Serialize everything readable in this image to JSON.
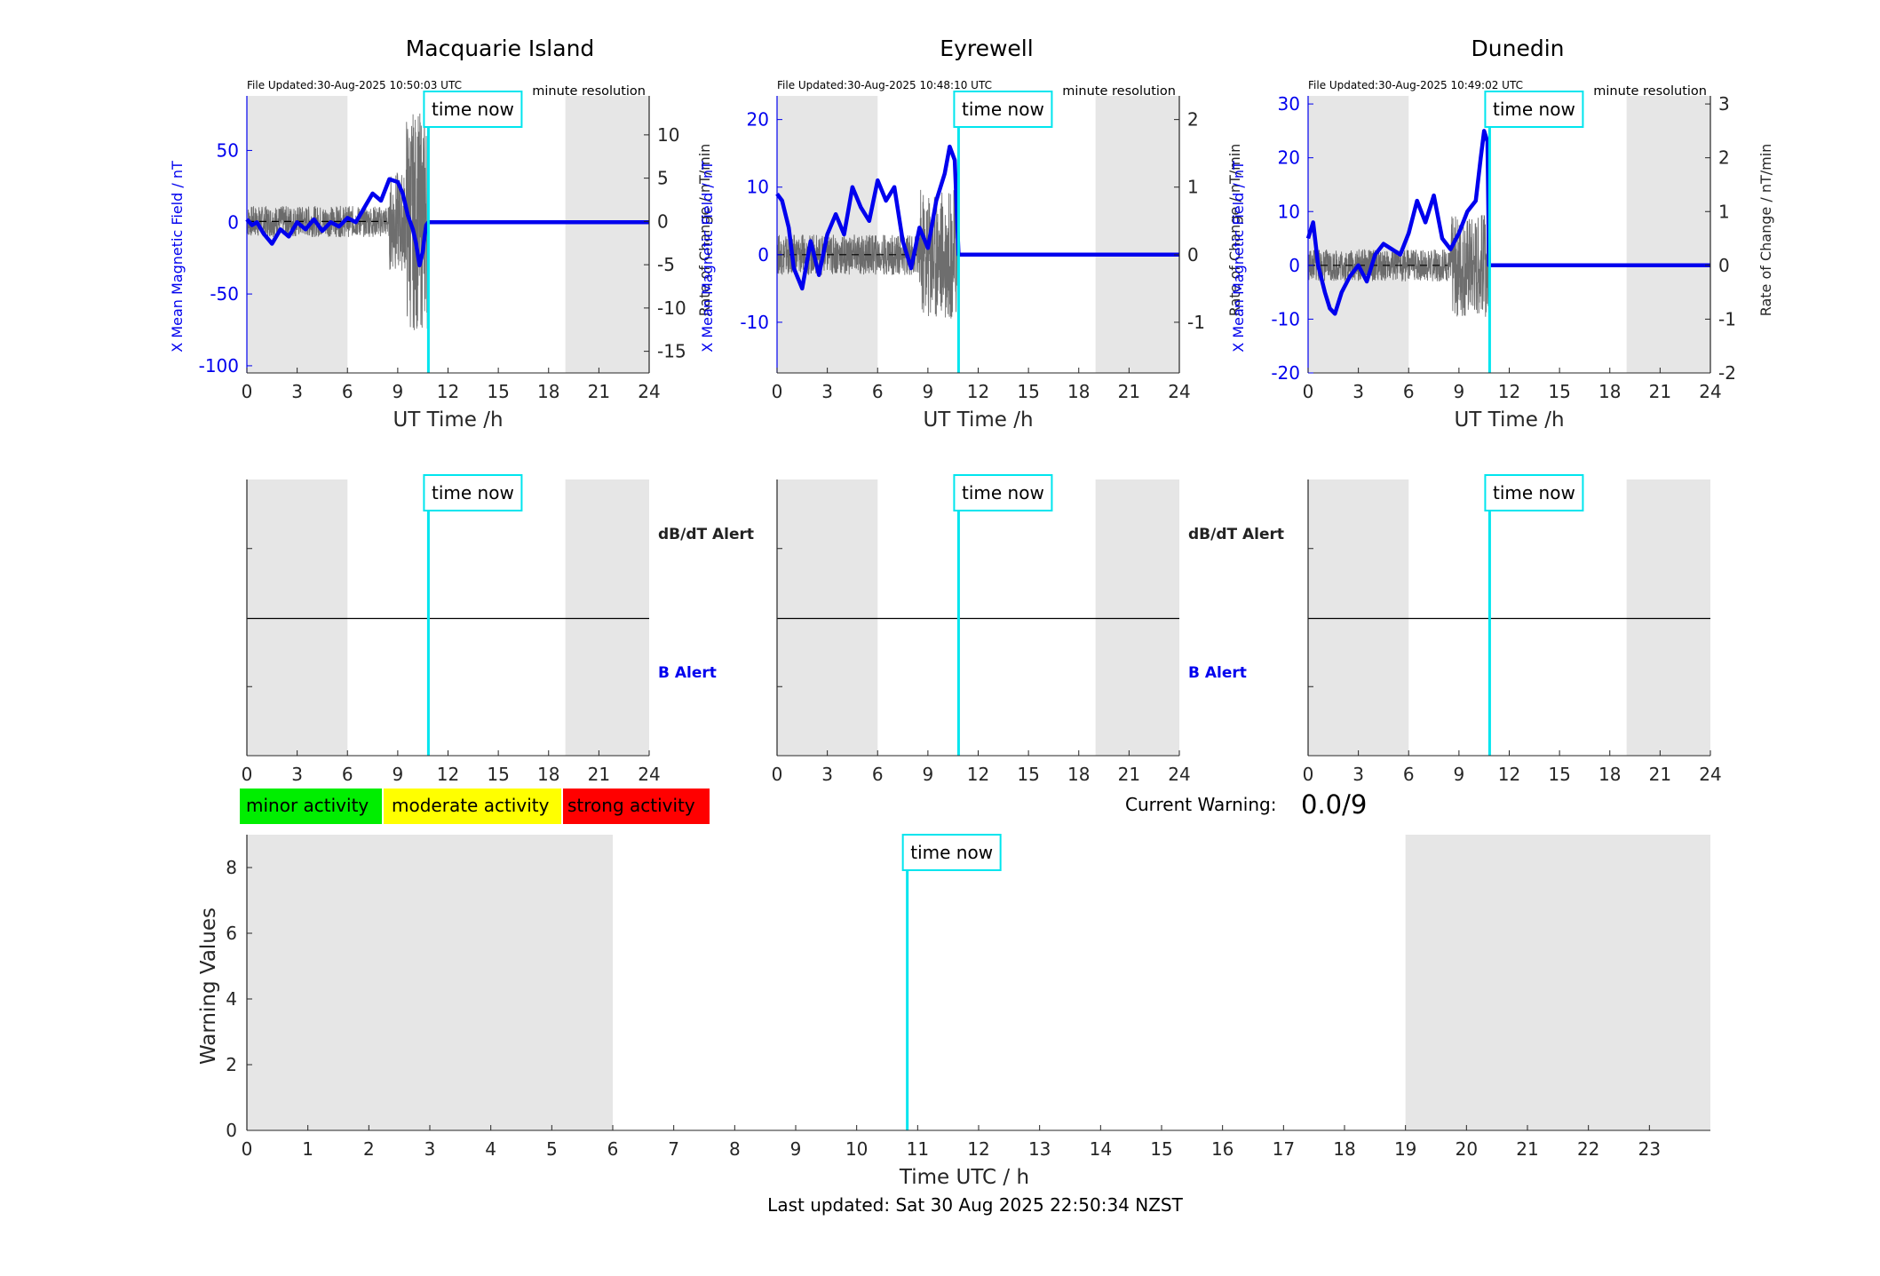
{
  "colors": {
    "field": "#0000ee",
    "rate": "#555555",
    "time_now": "#00e5ee",
    "shading": "#e6e6e6",
    "minor": "#00ee00",
    "moderate": "#ffff00",
    "strong": "#ff0000"
  },
  "time_now_label": "time now",
  "resolution_label": "minute resolution",
  "x_axis_label": "UT Time /h",
  "y_left_label": "X Mean Magnetic Field / nT",
  "y_right_label": "Rate of Change / nT/min",
  "dbdt_alert_label": "dB/dT Alert",
  "b_alert_label": "B Alert",
  "legend": {
    "minor": "minor activity",
    "moderate": "moderate activity",
    "strong": "strong activity"
  },
  "current_warning_label": "Current Warning:",
  "current_warning_value": "0.0/9",
  "last_updated": "Last updated: Sat 30 Aug 2025 22:50:34 NZST",
  "chart_data": [
    {
      "type": "line",
      "title": "Macquarie Island",
      "file_updated": "File Updated:30-Aug-2025 10:50:03 UTC",
      "xlabel": "UT Time /h",
      "ylabel": "X Mean Magnetic Field / nT",
      "y2label": "Rate of Change / nT/min",
      "xlim": [
        0,
        24
      ],
      "ylim": [
        -105,
        88
      ],
      "y2lim": [
        -17.5,
        14.5
      ],
      "xticks": [
        0,
        3,
        6,
        9,
        12,
        15,
        18,
        21,
        24
      ],
      "yticks": [
        -100,
        -50,
        0,
        50
      ],
      "y2ticks": [
        -15,
        -10,
        -5,
        0,
        5,
        10
      ],
      "time_now": 10.83,
      "night_shading": [
        [
          0,
          6
        ],
        [
          19,
          24
        ]
      ],
      "rate_noise_amplitude": 1.8,
      "series": [
        {
          "name": "X Mean Magnetic Field",
          "x": [
            0,
            0.3,
            0.6,
            1.0,
            1.5,
            2.0,
            2.5,
            3.0,
            3.5,
            4.0,
            4.5,
            5.0,
            5.5,
            6.0,
            6.5,
            7.0,
            7.5,
            8.0,
            8.5,
            9.0,
            9.3,
            9.6,
            9.9,
            10.1,
            10.3,
            10.5,
            10.6,
            10.7,
            10.83,
            24
          ],
          "values": [
            2,
            -2,
            0,
            -8,
            -15,
            -5,
            -10,
            0,
            -5,
            2,
            -6,
            0,
            -3,
            3,
            0,
            10,
            20,
            15,
            30,
            28,
            20,
            5,
            -5,
            -15,
            -30,
            -20,
            -10,
            -2,
            0,
            0
          ]
        }
      ]
    },
    {
      "type": "line",
      "title": "Eyrewell",
      "file_updated": "File Updated:30-Aug-2025 10:48:10 UTC",
      "xlabel": "UT Time /h",
      "ylabel": "X Mean Magnetic Field / nT",
      "y2label": "Rate of Change / nT/min",
      "xlim": [
        0,
        24
      ],
      "ylim": [
        -17.5,
        23.5
      ],
      "y2lim": [
        -1.75,
        2.35
      ],
      "xticks": [
        0,
        3,
        6,
        9,
        12,
        15,
        18,
        21,
        24
      ],
      "yticks": [
        -10,
        0,
        10,
        20
      ],
      "y2ticks": [
        -1,
        0,
        1,
        2
      ],
      "time_now": 10.83,
      "night_shading": [
        [
          0,
          6
        ],
        [
          19,
          24
        ]
      ],
      "rate_noise_amplitude": 0.3,
      "series": [
        {
          "name": "X Mean Magnetic Field",
          "x": [
            0,
            0.3,
            0.7,
            1.0,
            1.5,
            2.0,
            2.5,
            3.0,
            3.5,
            4.0,
            4.5,
            5.0,
            5.5,
            6.0,
            6.5,
            7.0,
            7.5,
            8.0,
            8.5,
            9.0,
            9.5,
            10.0,
            10.3,
            10.6,
            10.83,
            24
          ],
          "values": [
            9,
            8,
            4,
            -2,
            -5,
            2,
            -3,
            3,
            6,
            3,
            10,
            7,
            5,
            11,
            8,
            10,
            2,
            -2,
            4,
            1,
            8,
            12,
            16,
            14,
            0,
            0
          ]
        }
      ]
    },
    {
      "type": "line",
      "title": "Dunedin",
      "file_updated": "File Updated:30-Aug-2025 10:49:02 UTC",
      "xlabel": "UT Time /h",
      "ylabel": "X Mean Magnetic Field / nT",
      "y2label": "Rate of Change / nT/min",
      "xlim": [
        0,
        24
      ],
      "ylim": [
        -20,
        31.5
      ],
      "y2lim": [
        -2,
        3.15
      ],
      "xticks": [
        0,
        3,
        6,
        9,
        12,
        15,
        18,
        21,
        24
      ],
      "yticks": [
        -20,
        -10,
        0,
        10,
        20,
        30
      ],
      "y2ticks": [
        -2,
        -1,
        0,
        1,
        2,
        3
      ],
      "time_now": 10.83,
      "night_shading": [
        [
          0,
          6
        ],
        [
          19,
          24
        ]
      ],
      "rate_noise_amplitude": 0.3,
      "series": [
        {
          "name": "X Mean Magnetic Field",
          "x": [
            0,
            0.3,
            0.6,
            1.0,
            1.3,
            1.6,
            2.0,
            2.5,
            3.0,
            3.5,
            4.0,
            4.5,
            5.0,
            5.5,
            6.0,
            6.5,
            7.0,
            7.5,
            8.0,
            8.5,
            9.0,
            9.5,
            10.0,
            10.3,
            10.5,
            10.7,
            10.8,
            24
          ],
          "values": [
            5,
            8,
            0,
            -5,
            -8,
            -9,
            -5,
            -2,
            0,
            -3,
            2,
            4,
            3,
            2,
            6,
            12,
            8,
            13,
            5,
            3,
            6,
            10,
            12,
            20,
            25,
            23,
            0,
            0
          ]
        }
      ]
    },
    {
      "type": "line",
      "title": "",
      "xlabel": "Time UTC / h",
      "ylabel": "Warning Values",
      "xlim": [
        0,
        24
      ],
      "ylim": [
        0,
        9
      ],
      "xticks": [
        0,
        1,
        2,
        3,
        4,
        5,
        6,
        7,
        8,
        9,
        10,
        11,
        12,
        13,
        14,
        15,
        16,
        17,
        18,
        19,
        20,
        21,
        22,
        23
      ],
      "yticks": [
        0,
        2,
        4,
        6,
        8
      ],
      "time_now": 10.83,
      "night_shading": [
        [
          0,
          6
        ],
        [
          19,
          24
        ]
      ],
      "series": []
    }
  ]
}
